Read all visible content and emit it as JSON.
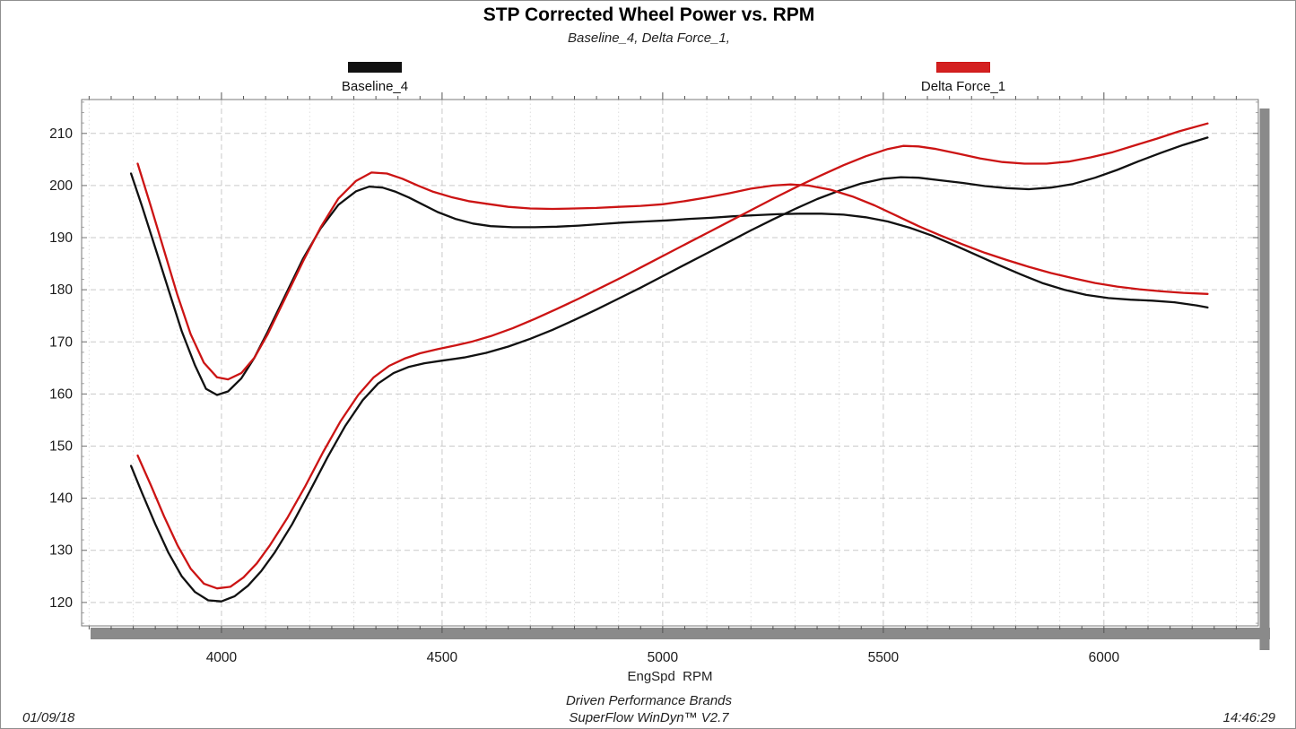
{
  "header": {
    "title": "STP Corrected Wheel Power vs. RPM",
    "subtitle": "Baseline_4, Delta Force_1,"
  },
  "legend": [
    {
      "label": "Baseline_4",
      "color": "#111111",
      "swatch_fill": "#111111"
    },
    {
      "label": "Delta Force_1",
      "color": "#cc1414",
      "swatch_fill": "#d42020"
    }
  ],
  "footer": {
    "date": "01/09/18",
    "time": "14:46:29",
    "brand_line1": "Driven Performance Brands",
    "brand_line2": "SuperFlow WinDyn™ V2.7"
  },
  "chart_data": {
    "type": "line",
    "title": "STP Corrected Wheel Power vs. RPM",
    "xlabel": "EngSpd  RPM",
    "ylabel": "",
    "xlim": [
      3683,
      6350
    ],
    "ylim": [
      115.5,
      216.5
    ],
    "x_major_ticks": [
      4000,
      4500,
      5000,
      5500,
      6000
    ],
    "x_minor_grid_step": 100,
    "x_border_tick_step": 50,
    "y_major_ticks": [
      120,
      130,
      140,
      150,
      160,
      170,
      180,
      190,
      200,
      210
    ],
    "y_border_tick_step": 2,
    "grid": "light gray dashed majors, dotted 100-rpm minors",
    "legend_position": "above plot, swatches over labels",
    "frame": "boxed plot area with gray drop shadow lower-right",
    "colors": {
      "baseline": "#111111",
      "delta_force": "#cc1414",
      "grid_major": "#c9c9c9",
      "grid_minor": "#dedede",
      "shadow": "#8a8a8a"
    },
    "series": [
      {
        "name": "Baseline_4_a",
        "color": "#111111",
        "points": [
          [
            3795,
            202.3
          ],
          [
            3820,
            196
          ],
          [
            3850,
            188
          ],
          [
            3880,
            180
          ],
          [
            3910,
            172
          ],
          [
            3940,
            165.5
          ],
          [
            3965,
            161
          ],
          [
            3990,
            159.8
          ],
          [
            4015,
            160.5
          ],
          [
            4045,
            163
          ],
          [
            4075,
            167
          ],
          [
            4105,
            172
          ],
          [
            4145,
            179
          ],
          [
            4185,
            186
          ],
          [
            4225,
            191.8
          ],
          [
            4265,
            196.3
          ],
          [
            4305,
            198.9
          ],
          [
            4335,
            199.8
          ],
          [
            4365,
            199.6
          ],
          [
            4395,
            198.8
          ],
          [
            4425,
            197.7
          ],
          [
            4455,
            196.4
          ],
          [
            4490,
            194.9
          ],
          [
            4530,
            193.6
          ],
          [
            4570,
            192.7
          ],
          [
            4610,
            192.2
          ],
          [
            4660,
            192
          ],
          [
            4710,
            192
          ],
          [
            4760,
            192.1
          ],
          [
            4810,
            192.3
          ],
          [
            4860,
            192.6
          ],
          [
            4910,
            192.9
          ],
          [
            4960,
            193.1
          ],
          [
            5010,
            193.3
          ],
          [
            5060,
            193.6
          ],
          [
            5110,
            193.8
          ],
          [
            5160,
            194.1
          ],
          [
            5210,
            194.3
          ],
          [
            5260,
            194.5
          ],
          [
            5310,
            194.6
          ],
          [
            5360,
            194.6
          ],
          [
            5410,
            194.4
          ],
          [
            5460,
            193.9
          ],
          [
            5510,
            193.1
          ],
          [
            5560,
            191.9
          ],
          [
            5610,
            190.4
          ],
          [
            5660,
            188.6
          ],
          [
            5710,
            186.7
          ],
          [
            5760,
            184.8
          ],
          [
            5810,
            183
          ],
          [
            5860,
            181.3
          ],
          [
            5910,
            180
          ],
          [
            5960,
            179
          ],
          [
            6010,
            178.4
          ],
          [
            6060,
            178.1
          ],
          [
            6110,
            177.9
          ],
          [
            6160,
            177.6
          ],
          [
            6210,
            177
          ],
          [
            6235,
            176.6
          ]
        ]
      },
      {
        "name": "Baseline_4_b",
        "color": "#111111",
        "points": [
          [
            3795,
            146.2
          ],
          [
            3820,
            141
          ],
          [
            3850,
            135
          ],
          [
            3880,
            129.5
          ],
          [
            3910,
            125
          ],
          [
            3940,
            122
          ],
          [
            3970,
            120.4
          ],
          [
            4000,
            120.2
          ],
          [
            4030,
            121.2
          ],
          [
            4060,
            123.2
          ],
          [
            4090,
            126
          ],
          [
            4120,
            129.5
          ],
          [
            4160,
            135
          ],
          [
            4200,
            141.3
          ],
          [
            4240,
            147.8
          ],
          [
            4280,
            153.8
          ],
          [
            4320,
            158.8
          ],
          [
            4355,
            162
          ],
          [
            4390,
            164
          ],
          [
            4425,
            165.2
          ],
          [
            4460,
            165.9
          ],
          [
            4500,
            166.4
          ],
          [
            4550,
            167
          ],
          [
            4600,
            167.9
          ],
          [
            4650,
            169.1
          ],
          [
            4700,
            170.6
          ],
          [
            4750,
            172.3
          ],
          [
            4800,
            174.2
          ],
          [
            4850,
            176.2
          ],
          [
            4900,
            178.3
          ],
          [
            4950,
            180.4
          ],
          [
            5000,
            182.6
          ],
          [
            5050,
            184.8
          ],
          [
            5100,
            187
          ],
          [
            5150,
            189.2
          ],
          [
            5200,
            191.4
          ],
          [
            5250,
            193.5
          ],
          [
            5300,
            195.5
          ],
          [
            5350,
            197.4
          ],
          [
            5400,
            199
          ],
          [
            5450,
            200.4
          ],
          [
            5500,
            201.3
          ],
          [
            5540,
            201.6
          ],
          [
            5580,
            201.5
          ],
          [
            5630,
            201
          ],
          [
            5680,
            200.5
          ],
          [
            5730,
            199.9
          ],
          [
            5780,
            199.5
          ],
          [
            5830,
            199.3
          ],
          [
            5880,
            199.6
          ],
          [
            5930,
            200.3
          ],
          [
            5980,
            201.5
          ],
          [
            6030,
            203
          ],
          [
            6080,
            204.7
          ],
          [
            6130,
            206.3
          ],
          [
            6180,
            207.8
          ],
          [
            6235,
            209.2
          ]
        ]
      },
      {
        "name": "Delta Force_1_a",
        "color": "#cc1414",
        "points": [
          [
            3810,
            204.2
          ],
          [
            3840,
            196
          ],
          [
            3870,
            187.5
          ],
          [
            3900,
            179
          ],
          [
            3930,
            171.5
          ],
          [
            3960,
            166
          ],
          [
            3990,
            163.2
          ],
          [
            4015,
            162.8
          ],
          [
            4045,
            164
          ],
          [
            4075,
            167
          ],
          [
            4105,
            171.5
          ],
          [
            4145,
            178.5
          ],
          [
            4185,
            185.5
          ],
          [
            4225,
            192
          ],
          [
            4265,
            197.5
          ],
          [
            4305,
            200.9
          ],
          [
            4340,
            202.5
          ],
          [
            4375,
            202.3
          ],
          [
            4410,
            201.3
          ],
          [
            4445,
            200
          ],
          [
            4480,
            198.8
          ],
          [
            4520,
            197.8
          ],
          [
            4560,
            197
          ],
          [
            4600,
            196.5
          ],
          [
            4650,
            195.9
          ],
          [
            4700,
            195.6
          ],
          [
            4750,
            195.5
          ],
          [
            4800,
            195.6
          ],
          [
            4850,
            195.7
          ],
          [
            4900,
            195.9
          ],
          [
            4950,
            196.1
          ],
          [
            5000,
            196.4
          ],
          [
            5050,
            197
          ],
          [
            5100,
            197.7
          ],
          [
            5150,
            198.5
          ],
          [
            5200,
            199.4
          ],
          [
            5250,
            200
          ],
          [
            5290,
            200.2
          ],
          [
            5330,
            200
          ],
          [
            5380,
            199.2
          ],
          [
            5430,
            197.9
          ],
          [
            5480,
            196.2
          ],
          [
            5530,
            194.2
          ],
          [
            5580,
            192.2
          ],
          [
            5630,
            190.4
          ],
          [
            5680,
            188.7
          ],
          [
            5730,
            187.1
          ],
          [
            5780,
            185.7
          ],
          [
            5830,
            184.4
          ],
          [
            5880,
            183.2
          ],
          [
            5930,
            182.2
          ],
          [
            5980,
            181.3
          ],
          [
            6030,
            180.6
          ],
          [
            6080,
            180.1
          ],
          [
            6130,
            179.7
          ],
          [
            6180,
            179.4
          ],
          [
            6235,
            179.2
          ]
        ]
      },
      {
        "name": "Delta Force_1_b",
        "color": "#cc1414",
        "points": [
          [
            3810,
            148.2
          ],
          [
            3840,
            142.5
          ],
          [
            3870,
            136.5
          ],
          [
            3900,
            131
          ],
          [
            3930,
            126.5
          ],
          [
            3960,
            123.6
          ],
          [
            3990,
            122.7
          ],
          [
            4020,
            123
          ],
          [
            4050,
            124.8
          ],
          [
            4080,
            127.5
          ],
          [
            4110,
            131
          ],
          [
            4150,
            136.3
          ],
          [
            4190,
            142.3
          ],
          [
            4230,
            148.8
          ],
          [
            4270,
            154.8
          ],
          [
            4310,
            159.8
          ],
          [
            4345,
            163.2
          ],
          [
            4380,
            165.4
          ],
          [
            4415,
            166.8
          ],
          [
            4450,
            167.8
          ],
          [
            4490,
            168.6
          ],
          [
            4530,
            169.3
          ],
          [
            4570,
            170.1
          ],
          [
            4610,
            171.1
          ],
          [
            4660,
            172.6
          ],
          [
            4710,
            174.4
          ],
          [
            4760,
            176.3
          ],
          [
            4810,
            178.3
          ],
          [
            4860,
            180.4
          ],
          [
            4910,
            182.5
          ],
          [
            4960,
            184.7
          ],
          [
            5010,
            186.9
          ],
          [
            5060,
            189.1
          ],
          [
            5110,
            191.3
          ],
          [
            5160,
            193.5
          ],
          [
            5210,
            195.7
          ],
          [
            5260,
            197.9
          ],
          [
            5310,
            200
          ],
          [
            5360,
            202
          ],
          [
            5410,
            203.9
          ],
          [
            5460,
            205.6
          ],
          [
            5510,
            207
          ],
          [
            5545,
            207.6
          ],
          [
            5580,
            207.5
          ],
          [
            5620,
            207
          ],
          [
            5670,
            206.1
          ],
          [
            5720,
            205.2
          ],
          [
            5770,
            204.5
          ],
          [
            5820,
            204.2
          ],
          [
            5870,
            204.2
          ],
          [
            5920,
            204.6
          ],
          [
            5970,
            205.4
          ],
          [
            6020,
            206.4
          ],
          [
            6070,
            207.7
          ],
          [
            6120,
            209
          ],
          [
            6170,
            210.4
          ],
          [
            6235,
            211.9
          ]
        ]
      }
    ]
  }
}
